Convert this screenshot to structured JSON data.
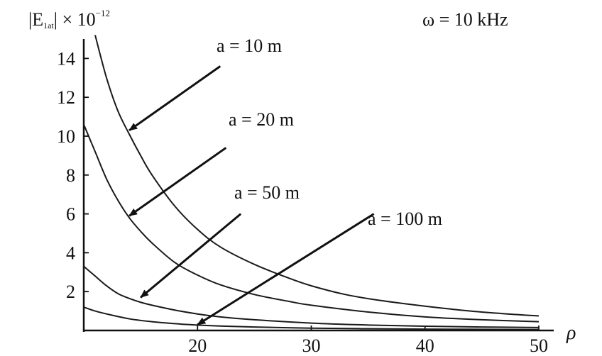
{
  "chart_data": {
    "type": "line",
    "title": "",
    "ylabel_main": "|E",
    "ylabel_sub": "1at",
    "ylabel_tail": "| × 10",
    "ylabel_exp": "−12",
    "xlabel": "ρ",
    "frequency_label": "ω = 10 kHz",
    "xlim": [
      10,
      51
    ],
    "ylim": [
      0,
      15
    ],
    "x_ticks": [
      20,
      30,
      40,
      50
    ],
    "y_ticks": [
      2,
      4,
      6,
      8,
      10,
      12,
      14
    ],
    "grid": false,
    "series": [
      {
        "name": "a = 10 m",
        "x": [
          11,
          12,
          13,
          14,
          15,
          16,
          18,
          20,
          22,
          25,
          28,
          30,
          33,
          36,
          40,
          44,
          48,
          50
        ],
        "y": [
          15.2,
          13.0,
          11.3,
          10.1,
          9.0,
          8.0,
          6.4,
          5.2,
          4.3,
          3.4,
          2.7,
          2.3,
          1.85,
          1.55,
          1.25,
          1.0,
          0.82,
          0.75
        ]
      },
      {
        "name": "a = 20 m",
        "x": [
          10,
          11,
          12,
          13,
          14,
          15,
          16,
          18,
          20,
          22,
          25,
          28,
          30,
          35,
          40,
          45,
          50
        ],
        "y": [
          10.6,
          9.2,
          7.8,
          6.7,
          5.8,
          5.1,
          4.5,
          3.5,
          2.85,
          2.35,
          1.85,
          1.5,
          1.3,
          0.95,
          0.7,
          0.55,
          0.45
        ]
      },
      {
        "name": "a = 50 m",
        "x": [
          10,
          11,
          12,
          13,
          14,
          15,
          16,
          18,
          20,
          22,
          25,
          30,
          35,
          40,
          45,
          50
        ],
        "y": [
          3.3,
          2.8,
          2.3,
          1.9,
          1.65,
          1.45,
          1.3,
          1.05,
          0.85,
          0.7,
          0.55,
          0.38,
          0.28,
          0.22,
          0.18,
          0.15
        ]
      },
      {
        "name": "a = 100 m",
        "x": [
          10,
          11,
          12,
          14,
          16,
          18,
          20,
          22,
          25,
          30,
          35,
          40,
          45,
          50
        ],
        "y": [
          1.2,
          1.0,
          0.85,
          0.6,
          0.45,
          0.35,
          0.28,
          0.23,
          0.18,
          0.12,
          0.09,
          0.07,
          0.06,
          0.05
        ]
      }
    ],
    "annotations": [
      {
        "text": "a = 10 m",
        "series": 0,
        "arrow_from": [
          22.0,
          13.6
        ],
        "arrow_to": [
          14.0,
          10.3
        ]
      },
      {
        "text": "a = 20 m",
        "series": 1,
        "arrow_from": [
          22.5,
          9.4
        ],
        "arrow_to": [
          14.0,
          5.9
        ]
      },
      {
        "text": "a = 50 m",
        "series": 2,
        "arrow_from": [
          23.8,
          6.0
        ],
        "arrow_to": [
          15.0,
          1.7
        ]
      },
      {
        "text": "a = 100 m",
        "series": 3,
        "arrow_from": [
          35.5,
          6.0
        ],
        "arrow_to": [
          20.0,
          0.3
        ]
      }
    ]
  }
}
